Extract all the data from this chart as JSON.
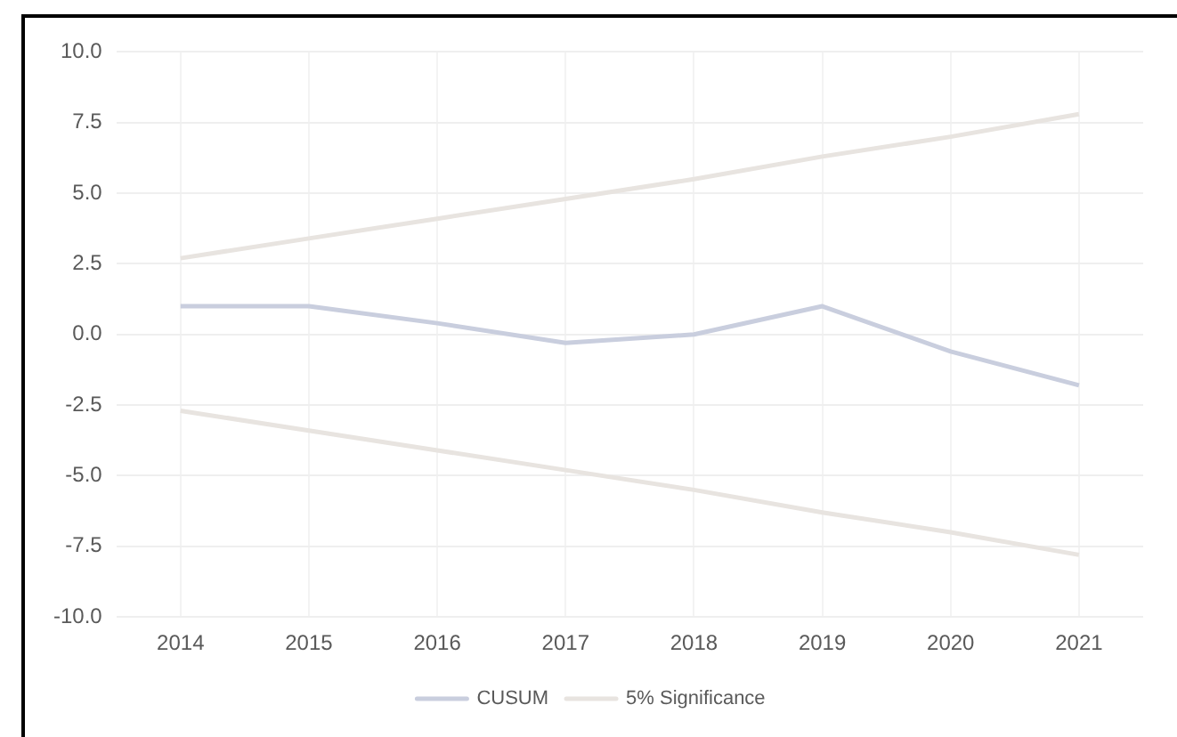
{
  "chart_data": {
    "type": "line",
    "categories": [
      "2014",
      "2015",
      "2016",
      "2017",
      "2018",
      "2019",
      "2020",
      "2021"
    ],
    "series": [
      {
        "name": "CUSUM",
        "color": "#c9cede",
        "values": [
          1.0,
          1.0,
          0.4,
          -0.3,
          0.0,
          1.0,
          -0.6,
          -1.8
        ]
      },
      {
        "name": "5% Significance",
        "color": "#e8e4e0",
        "values": [
          2.7,
          3.4,
          4.1,
          4.8,
          5.5,
          6.3,
          7.0,
          7.8
        ]
      },
      {
        "color": "#e8e4e0",
        "values": [
          -2.7,
          -3.4,
          -4.1,
          -4.8,
          -5.5,
          -6.3,
          -7.0,
          -7.8
        ]
      }
    ],
    "ylim": [
      -10,
      10
    ],
    "yticks": [
      {
        "value": -10,
        "label": "-10.0"
      },
      {
        "value": -7.5,
        "label": "-7.5"
      },
      {
        "value": -5,
        "label": "-5.0"
      },
      {
        "value": -2.5,
        "label": "-2.5"
      },
      {
        "value": 0,
        "label": "0.0"
      },
      {
        "value": 2.5,
        "label": "2.5"
      },
      {
        "value": 5,
        "label": "5.0"
      },
      {
        "value": 7.5,
        "label": "7.5"
      },
      {
        "value": 10,
        "label": "10.0"
      }
    ],
    "grid": true,
    "legend": "bottom",
    "marker": "none",
    "line_style": "solid"
  }
}
